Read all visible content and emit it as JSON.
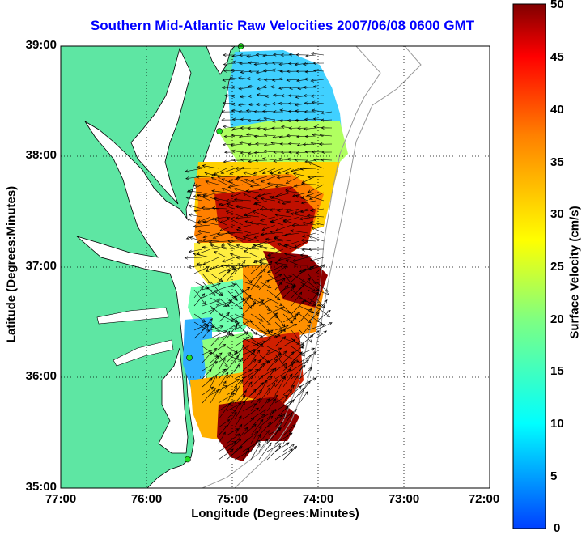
{
  "title": "Southern Mid-Atlantic Raw Velocities 2007/06/08 0600 GMT",
  "axes": {
    "xlabel": "Longitude (Degrees:Minutes)",
    "ylabel": "Latitude (Degrees:Minutes)",
    "x_ticks": [
      "77:00",
      "76:00",
      "75:00",
      "74:00",
      "73:00",
      "72:00"
    ],
    "y_ticks": [
      "39:00",
      "38:00",
      "37:00",
      "36:00",
      "35:00"
    ],
    "xlim": [
      -77,
      -72
    ],
    "ylim": [
      35,
      39
    ],
    "grid": true
  },
  "colorbar": {
    "label": "Surface Velocity (cm/s)",
    "ticks": [
      "50",
      "45",
      "40",
      "35",
      "30",
      "25",
      "20",
      "15",
      "10",
      "5",
      "0"
    ],
    "range": [
      0,
      50
    ]
  },
  "stations": [
    {
      "lon": -74.9,
      "lat": 39.0
    },
    {
      "lon": -75.15,
      "lat": 38.23
    },
    {
      "lon": -75.5,
      "lat": 36.18
    },
    {
      "lon": -75.52,
      "lat": 35.26
    }
  ],
  "colors": {
    "land": "#5ee6a3",
    "coast": "#000000",
    "title": "#0000ff",
    "station": "#22dd22"
  }
}
